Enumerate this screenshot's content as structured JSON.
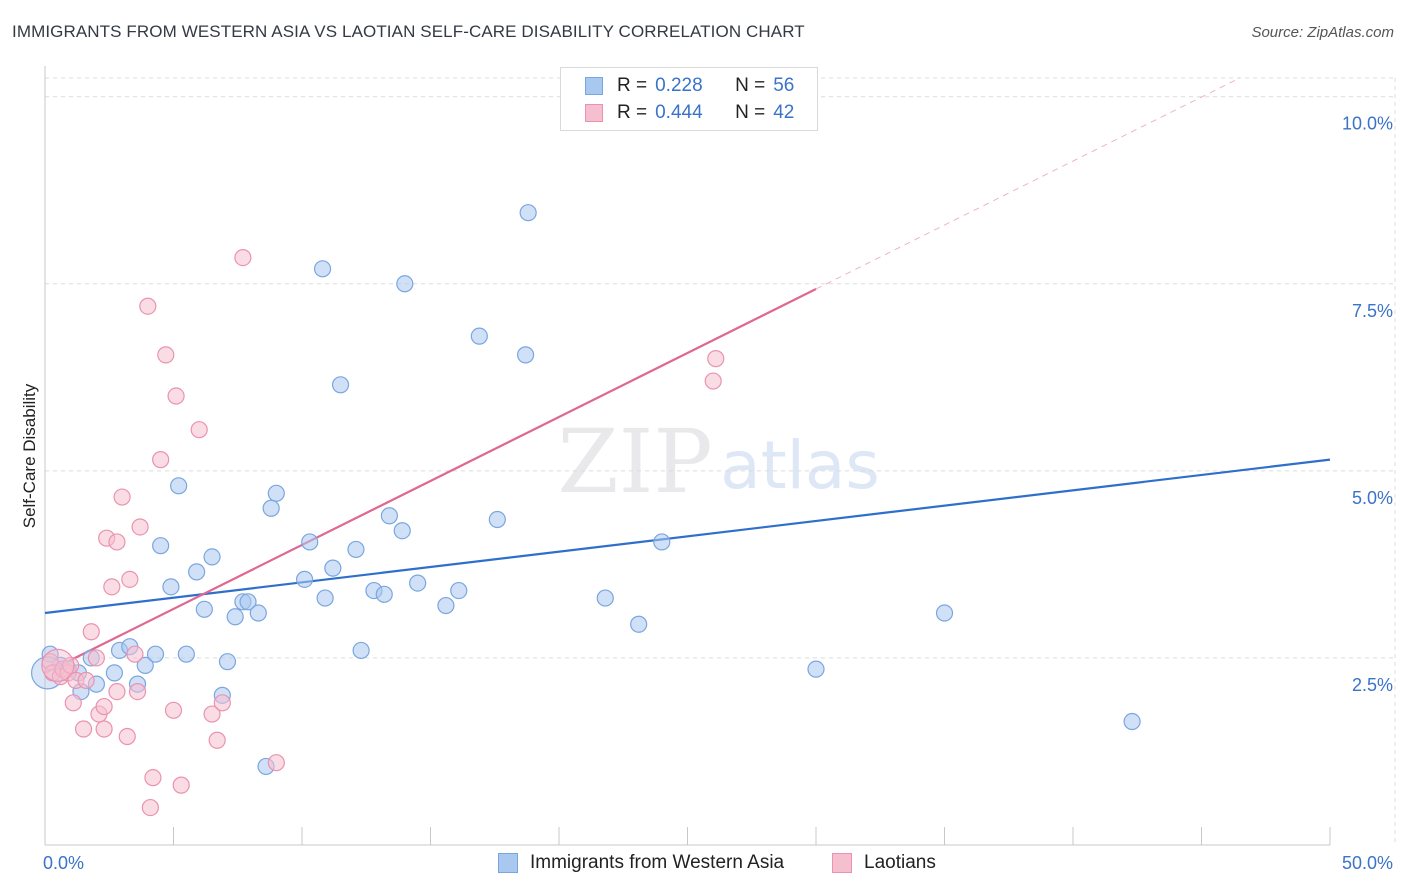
{
  "title": "IMMIGRANTS FROM WESTERN ASIA VS LAOTIAN SELF-CARE DISABILITY CORRELATION CHART",
  "source": "Source: ZipAtlas.com",
  "watermark": {
    "zip": "ZIP",
    "atlas": "atlas"
  },
  "legend_top": {
    "rows": [
      {
        "r_label": "R =",
        "r_value": "0.228",
        "n_label": "N =",
        "n_value": "56"
      },
      {
        "r_label": "R =",
        "r_value": "0.444",
        "n_label": "N =",
        "n_value": "42"
      }
    ]
  },
  "colors": {
    "blue_fill": "#a9c8f0",
    "blue_stroke": "#7aa6df",
    "blue_line": "#2f6fcc",
    "pink_fill": "#f6bfd0",
    "pink_stroke": "#ea93b0",
    "pink_line": "#e06792",
    "grid": "#dcdcdc",
    "axis_text": "#3a73c8"
  },
  "chart_data": {
    "type": "scatter",
    "title": "IMMIGRANTS FROM WESTERN ASIA VS LAOTIAN SELF-CARE DISABILITY CORRELATION CHART",
    "xlabel": "",
    "ylabel": "Self-Care Disability",
    "xlim": [
      0,
      50
    ],
    "ylim": [
      0,
      10.25
    ],
    "x_tick_labels": [
      "0.0%",
      "50.0%"
    ],
    "y_ticks": [
      2.5,
      5.0,
      7.5,
      10.0
    ],
    "y_tick_labels": [
      "2.5%",
      "5.0%",
      "7.5%",
      "10.0%"
    ],
    "grid": true,
    "legend_position": "bottom",
    "series": [
      {
        "name": "Immigrants from Western Asia",
        "r": 0.228,
        "n": 56,
        "trend": {
          "x0": 0,
          "y0": 3.1,
          "x1": 50,
          "y1": 5.15,
          "solid_to_x": 50
        },
        "points": [
          [
            0.2,
            2.55
          ],
          [
            0.6,
            2.4
          ],
          [
            0.9,
            2.35
          ],
          [
            1.3,
            2.3
          ],
          [
            1.8,
            2.5
          ],
          [
            1.4,
            2.05
          ],
          [
            2.0,
            2.15
          ],
          [
            2.7,
            2.3
          ],
          [
            2.9,
            2.6
          ],
          [
            3.3,
            2.65
          ],
          [
            3.6,
            2.15
          ],
          [
            3.9,
            2.4
          ],
          [
            4.3,
            2.55
          ],
          [
            4.5,
            4.0
          ],
          [
            4.9,
            3.45
          ],
          [
            5.2,
            4.8
          ],
          [
            5.5,
            2.55
          ],
          [
            5.9,
            3.65
          ],
          [
            6.2,
            3.15
          ],
          [
            6.5,
            3.85
          ],
          [
            6.9,
            2.0
          ],
          [
            7.1,
            2.45
          ],
          [
            7.4,
            3.05
          ],
          [
            7.7,
            3.25
          ],
          [
            7.9,
            3.25
          ],
          [
            8.3,
            3.1
          ],
          [
            8.6,
            1.05
          ],
          [
            8.8,
            4.5
          ],
          [
            9.0,
            4.7
          ],
          [
            10.1,
            3.55
          ],
          [
            10.3,
            4.05
          ],
          [
            10.8,
            7.7
          ],
          [
            10.9,
            3.3
          ],
          [
            11.2,
            3.7
          ],
          [
            11.5,
            6.15
          ],
          [
            12.1,
            3.95
          ],
          [
            12.3,
            2.6
          ],
          [
            12.8,
            3.4
          ],
          [
            13.2,
            3.35
          ],
          [
            13.4,
            4.4
          ],
          [
            13.9,
            4.2
          ],
          [
            14.0,
            7.5
          ],
          [
            14.5,
            3.5
          ],
          [
            15.6,
            3.2
          ],
          [
            16.1,
            3.4
          ],
          [
            16.9,
            6.8
          ],
          [
            17.6,
            4.35
          ],
          [
            18.7,
            6.55
          ],
          [
            18.8,
            8.45
          ],
          [
            21.8,
            3.3
          ],
          [
            23.1,
            2.95
          ],
          [
            24.0,
            4.05
          ],
          [
            30.0,
            2.35
          ],
          [
            35.0,
            3.1
          ],
          [
            42.3,
            1.65
          ],
          [
            0.1,
            2.3
          ]
        ]
      },
      {
        "name": "Laotians",
        "r": 0.444,
        "n": 42,
        "trend": {
          "x0": 0,
          "y0": 2.3,
          "x1": 50,
          "y1": 10.85,
          "solid_to_x": 30
        },
        "points": [
          [
            0.2,
            2.45
          ],
          [
            0.3,
            2.3
          ],
          [
            0.6,
            2.25
          ],
          [
            0.7,
            2.35
          ],
          [
            0.9,
            2.3
          ],
          [
            1.0,
            2.4
          ],
          [
            1.1,
            1.9
          ],
          [
            1.2,
            2.2
          ],
          [
            1.5,
            1.55
          ],
          [
            1.6,
            2.2
          ],
          [
            1.8,
            2.85
          ],
          [
            2.0,
            2.5
          ],
          [
            2.1,
            1.75
          ],
          [
            2.3,
            1.55
          ],
          [
            2.3,
            1.85
          ],
          [
            2.4,
            4.1
          ],
          [
            2.6,
            3.45
          ],
          [
            2.8,
            4.05
          ],
          [
            2.8,
            2.05
          ],
          [
            3.0,
            4.65
          ],
          [
            3.2,
            1.45
          ],
          [
            3.3,
            3.55
          ],
          [
            3.5,
            2.55
          ],
          [
            3.6,
            2.05
          ],
          [
            3.7,
            4.25
          ],
          [
            4.0,
            7.2
          ],
          [
            4.1,
            0.5
          ],
          [
            4.2,
            0.9
          ],
          [
            4.5,
            5.15
          ],
          [
            4.7,
            6.55
          ],
          [
            5.0,
            1.8
          ],
          [
            5.1,
            6.0
          ],
          [
            5.3,
            0.8
          ],
          [
            6.0,
            5.55
          ],
          [
            6.5,
            1.75
          ],
          [
            6.7,
            1.4
          ],
          [
            6.9,
            1.9
          ],
          [
            7.7,
            7.85
          ],
          [
            9.0,
            1.1
          ],
          [
            26.0,
            6.2
          ],
          [
            26.1,
            6.5
          ],
          [
            0.5,
            2.4
          ]
        ]
      }
    ]
  }
}
